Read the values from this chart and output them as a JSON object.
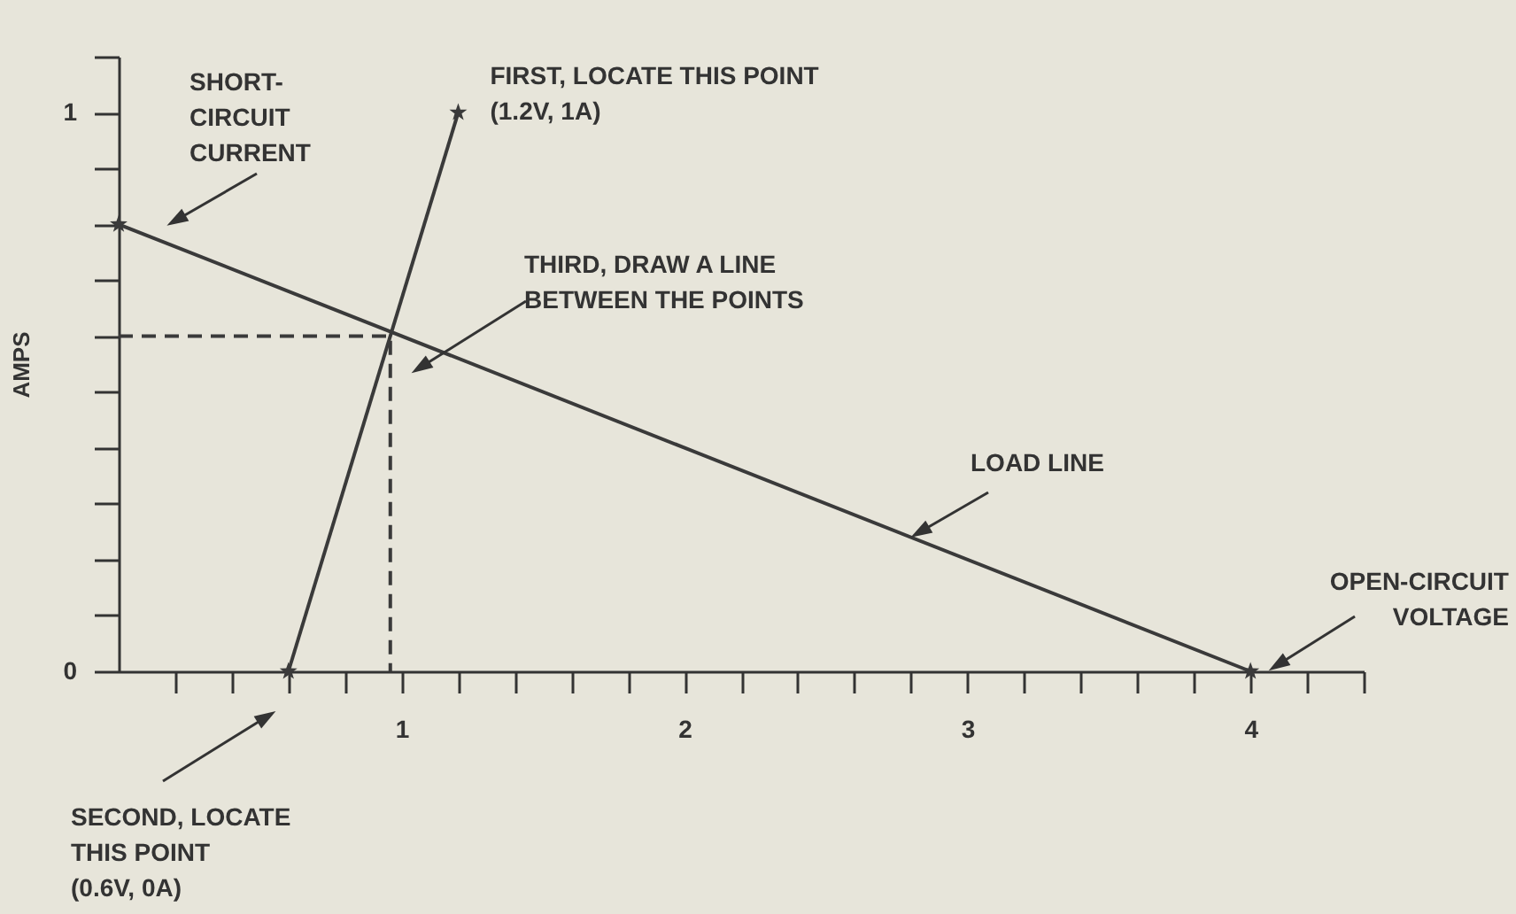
{
  "chart_data": {
    "type": "line",
    "ylabel": "AMPS",
    "series": [
      {
        "color": "#3a3a3a",
        "x": [
          0,
          4
        ],
        "values": [
          0.8,
          0
        ],
        "marker": "star",
        "line_style": "solid"
      },
      {
        "color": "#3a3a3a",
        "x": [
          0.6,
          1.2
        ],
        "values": [
          0,
          1
        ],
        "marker": "star",
        "line_style": "solid"
      },
      {
        "color": "#3a3a3a",
        "x": [
          0,
          0.96,
          0.96
        ],
        "values": [
          0.6,
          0.6,
          0
        ],
        "marker": "none",
        "line_style": "dashed"
      }
    ],
    "xlim": [
      0,
      4.4
    ],
    "xticks": [
      {
        "value": 0.2,
        "label": null
      },
      {
        "value": 0.4,
        "label": null
      },
      {
        "value": 0.6,
        "label": null
      },
      {
        "value": 0.8,
        "label": null
      },
      1,
      {
        "value": 1.2,
        "label": null
      },
      {
        "value": 1.4,
        "label": null
      },
      {
        "value": 1.6,
        "label": null
      },
      {
        "value": 1.8,
        "label": null
      },
      2,
      {
        "value": 2.2,
        "label": null
      },
      {
        "value": 2.4,
        "label": null
      },
      {
        "value": 2.6,
        "label": null
      },
      {
        "value": 2.8,
        "label": null
      },
      3,
      {
        "value": 3.2,
        "label": null
      },
      {
        "value": 3.4,
        "label": null
      },
      {
        "value": 3.6,
        "label": null
      },
      {
        "value": 3.8,
        "label": null
      },
      4,
      {
        "value": 4.2,
        "label": null
      },
      {
        "value": 4.4,
        "label": null
      }
    ],
    "ylim": [
      0,
      1.1
    ],
    "yticks": [
      0,
      {
        "value": 0.1,
        "label": null
      },
      {
        "value": 0.2,
        "label": null
      },
      {
        "value": 0.3,
        "label": null
      },
      {
        "value": 0.4,
        "label": null
      },
      {
        "value": 0.5,
        "label": null
      },
      {
        "value": 0.6,
        "label": null
      },
      {
        "value": 0.7,
        "label": null
      },
      {
        "value": 0.8,
        "label": null
      },
      {
        "value": 0.9,
        "label": null
      },
      1,
      {
        "value": 1.1,
        "label": null
      }
    ],
    "grid": false,
    "annotations": [
      "SHORT-\nCIRCUIT\nCURRENT",
      {
        "text": "FIRST, LOCATE THIS POINT\n(1.2V, 1A)",
        "x": 1.2,
        "y": 1
      },
      "THIRD, DRAW A LINE\nBETWEEN THE POINTS",
      "LOAD LINE",
      "OPEN-CIRCUIT\nVOLTAGE",
      "SECOND, LOCATE\nTHIS POINT\n(0.6V, 0A)"
    ]
  }
}
